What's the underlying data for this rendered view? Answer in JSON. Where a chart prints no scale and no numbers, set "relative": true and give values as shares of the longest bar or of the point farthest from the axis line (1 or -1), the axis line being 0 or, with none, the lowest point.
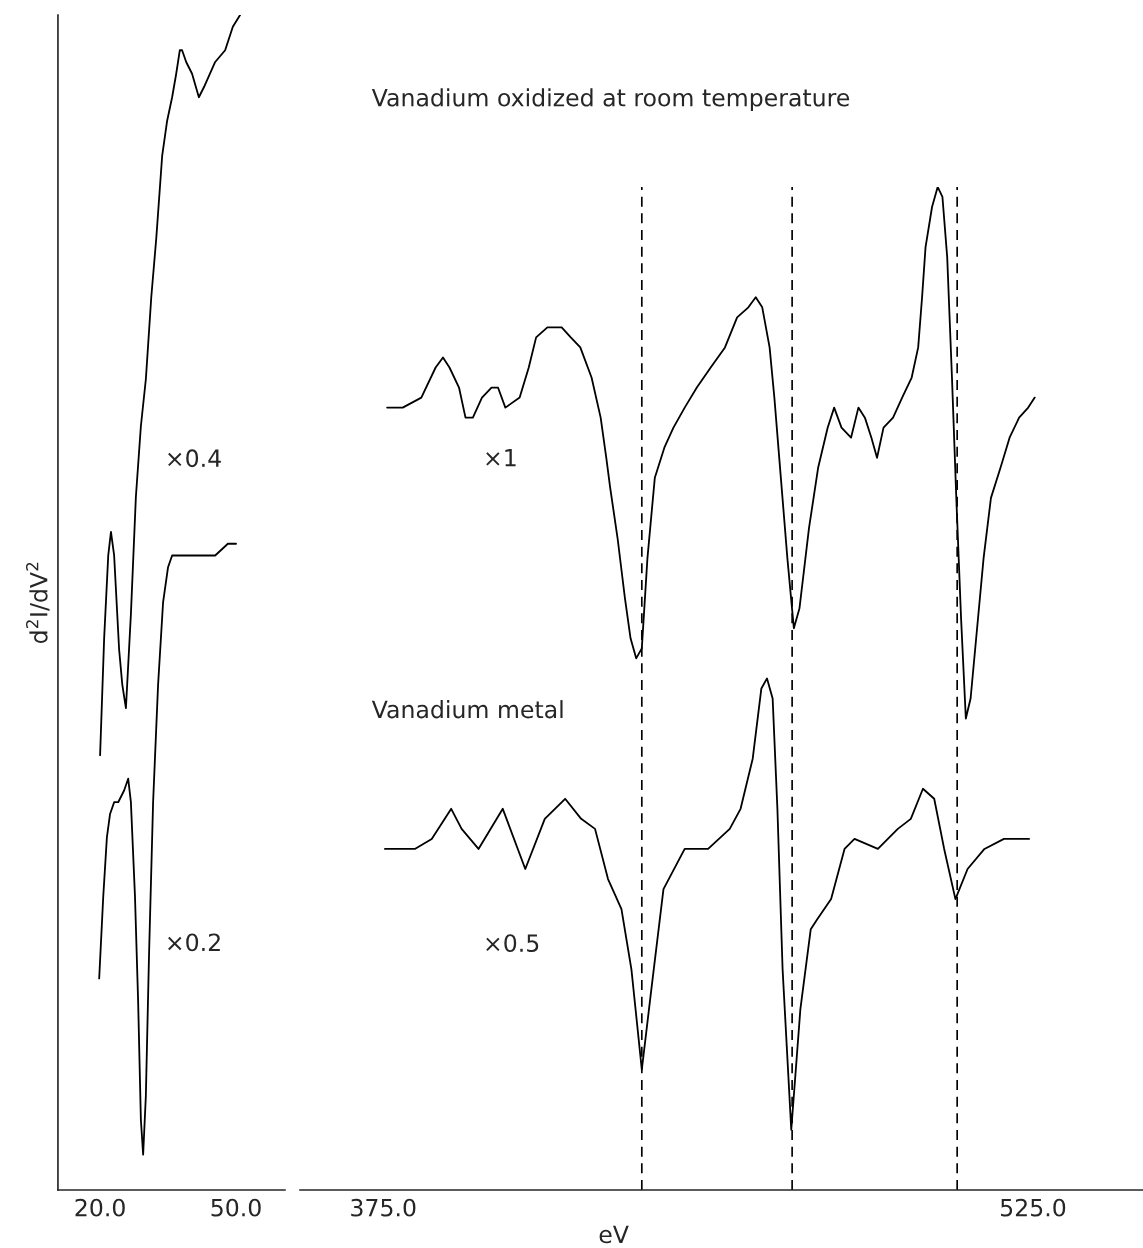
{
  "chart_data": [
    {
      "type": "line",
      "relative": true,
      "ylabel": "d$^{2}$I/dV$^{2}$",
      "xlim": [
        10.7,
        60.8
      ],
      "xticks": [
        {
          "value": 20,
          "label": "20.0"
        },
        {
          "value": 50,
          "label": "50.0"
        }
      ],
      "series": [
        {
          "name": "×0.4",
          "color": "#000000",
          "x": [
            20.0,
            20.9,
            21.8,
            22.4,
            23.1,
            24.2,
            24.9,
            25.7,
            26.8,
            27.9,
            29.0,
            30.1,
            31.3,
            32.4,
            33.7,
            34.8,
            35.9,
            36.8,
            37.6,
            38.1,
            39.0,
            40.3,
            41.8,
            43.1,
            45.4,
            47.6,
            49.3,
            50.9
          ],
          "values": [
            0.37,
            0.47,
            0.54,
            0.56,
            0.54,
            0.46,
            0.43,
            0.41,
            0.49,
            0.59,
            0.65,
            0.69,
            0.76,
            0.81,
            0.88,
            0.91,
            0.93,
            0.95,
            0.97,
            0.97,
            0.96,
            0.95,
            0.93,
            0.94,
            0.96,
            0.97,
            0.99,
            1.0
          ]
        },
        {
          "name": "×0.2",
          "color": "#000000",
          "x": [
            19.8,
            20.7,
            21.5,
            22.2,
            23.1,
            24.0,
            25.3,
            26.2,
            26.8,
            27.7,
            28.4,
            29.0,
            29.5,
            30.1,
            30.8,
            31.7,
            32.8,
            33.9,
            35.0,
            35.9,
            38.8,
            42.1,
            45.4,
            48.2,
            50.0
          ],
          "values": [
            0.18,
            0.25,
            0.3,
            0.32,
            0.33,
            0.33,
            0.34,
            0.35,
            0.33,
            0.25,
            0.16,
            0.06,
            0.03,
            0.08,
            0.2,
            0.33,
            0.43,
            0.5,
            0.53,
            0.54,
            0.54,
            0.54,
            0.54,
            0.55,
            0.55
          ]
        }
      ]
    },
    {
      "type": "line",
      "relative": true,
      "xlabel": "eV",
      "xlim": [
        355.8,
        550.4
      ],
      "xticks": [
        {
          "value": 375,
          "label": "375.0"
        },
        {
          "value": 525,
          "label": "525.0"
        }
      ],
      "series": [
        {
          "name": "×1",
          "color": "#000000",
          "x": [
            375.9,
            377.4,
            379.5,
            383.8,
            387.1,
            388.8,
            390.3,
            392.5,
            394.0,
            395.7,
            397.8,
            400.0,
            401.5,
            403.2,
            406.5,
            408.6,
            410.3,
            412.9,
            416.2,
            418.3,
            420.5,
            423.1,
            425.2,
            426.5,
            427.4,
            429.1,
            430.8,
            432.1,
            433.4,
            434.7,
            436.0,
            437.7,
            439.9,
            442.0,
            444.6,
            447.4,
            450.6,
            453.9,
            456.7,
            459.3,
            461.0,
            462.5,
            464.2,
            465.3,
            466.8,
            468.3,
            469.8,
            471.1,
            473.3,
            475.4,
            477.6,
            479.1,
            480.8,
            483.0,
            484.7,
            486.2,
            487.7,
            489.0,
            490.5,
            492.7,
            494.8,
            497.0,
            498.5,
            499.4,
            500.2,
            501.7,
            503.0,
            504.1,
            505.2,
            506.3,
            507.3,
            508.4,
            509.5,
            510.6,
            512.1,
            513.6,
            515.3,
            517.5,
            519.6,
            521.8,
            523.9,
            525.4
          ],
          "values": [
            0.78,
            0.78,
            0.78,
            0.79,
            0.82,
            0.83,
            0.82,
            0.8,
            0.77,
            0.77,
            0.79,
            0.8,
            0.8,
            0.78,
            0.79,
            0.82,
            0.85,
            0.86,
            0.86,
            0.85,
            0.84,
            0.81,
            0.77,
            0.73,
            0.7,
            0.65,
            0.59,
            0.55,
            0.53,
            0.54,
            0.63,
            0.71,
            0.74,
            0.76,
            0.78,
            0.8,
            0.82,
            0.84,
            0.87,
            0.88,
            0.89,
            0.88,
            0.84,
            0.79,
            0.71,
            0.63,
            0.56,
            0.58,
            0.66,
            0.72,
            0.76,
            0.78,
            0.76,
            0.75,
            0.78,
            0.77,
            0.75,
            0.73,
            0.76,
            0.77,
            0.79,
            0.81,
            0.84,
            0.89,
            0.94,
            0.98,
            1.0,
            0.99,
            0.93,
            0.81,
            0.69,
            0.57,
            0.47,
            0.49,
            0.56,
            0.63,
            0.69,
            0.72,
            0.75,
            0.77,
            0.78,
            0.79
          ]
        },
        {
          "name": "×0.5",
          "color": "#000000",
          "x": [
            375.4,
            382.3,
            386.2,
            390.7,
            393.1,
            397.0,
            402.6,
            407.8,
            412.3,
            417.0,
            420.7,
            423.9,
            426.9,
            430.0,
            432.3,
            434.7,
            436.9,
            439.7,
            444.6,
            450.0,
            455.0,
            457.5,
            460.3,
            462.3,
            463.6,
            464.9,
            466.0,
            467.2,
            469.2,
            471.3,
            473.7,
            475.2,
            478.4,
            481.5,
            483.8,
            489.2,
            493.8,
            496.8,
            499.6,
            502.2,
            504.5,
            507.1,
            509.9,
            513.8,
            518.3,
            524.1
          ],
          "values": [
            0.34,
            0.34,
            0.35,
            0.38,
            0.36,
            0.34,
            0.38,
            0.32,
            0.37,
            0.39,
            0.37,
            0.36,
            0.31,
            0.28,
            0.22,
            0.12,
            0.2,
            0.3,
            0.34,
            0.34,
            0.36,
            0.38,
            0.43,
            0.5,
            0.51,
            0.49,
            0.38,
            0.22,
            0.06,
            0.18,
            0.26,
            0.27,
            0.29,
            0.34,
            0.35,
            0.34,
            0.36,
            0.37,
            0.4,
            0.39,
            0.34,
            0.29,
            0.32,
            0.34,
            0.35,
            0.35
          ]
        }
      ],
      "ref_lines": [
        {
          "axis": "x",
          "value": 434.7,
          "line_style": "dashed"
        },
        {
          "axis": "x",
          "value": 469.4,
          "line_style": "dashed"
        },
        {
          "axis": "x",
          "value": 507.5,
          "line_style": "dashed"
        }
      ],
      "annotations": [
        "Vanadium oxidized at room temperature",
        "Vanadium metal"
      ]
    }
  ]
}
